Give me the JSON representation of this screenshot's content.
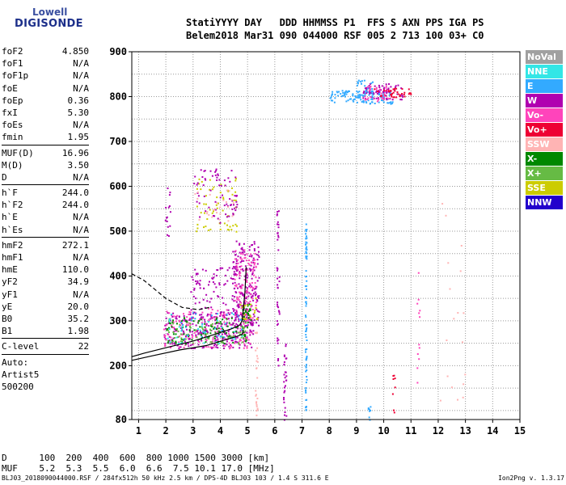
{
  "logo": {
    "line1": "Lowell",
    "line2": "DIGISONDE"
  },
  "header": {
    "labels": [
      "Stati",
      "YYYY",
      "DAY",
      "DDD",
      "HHMMSS",
      "P1",
      "FFS",
      "S",
      "AXN",
      "PPS",
      "IGA",
      "PS"
    ],
    "values": [
      "Belem",
      "2018",
      "Mar31",
      "090",
      "044000",
      "RSF",
      "005",
      "2",
      "713",
      "100",
      "03+",
      "C0"
    ]
  },
  "params": [
    [
      {
        "k": "foF2",
        "v": "4.850"
      },
      {
        "k": "foF1",
        "v": "N/A"
      },
      {
        "k": "foF1p",
        "v": "N/A"
      },
      {
        "k": "foE",
        "v": "N/A"
      },
      {
        "k": "foEp",
        "v": "0.36"
      },
      {
        "k": "fxI",
        "v": "5.30"
      },
      {
        "k": "foEs",
        "v": "N/A"
      },
      {
        "k": "fmin",
        "v": "1.95"
      }
    ],
    [
      {
        "k": "MUF(D)",
        "v": "16.96"
      },
      {
        "k": "M(D)",
        "v": "3.50"
      },
      {
        "k": "D",
        "v": "N/A"
      }
    ],
    [
      {
        "k": "h`F",
        "v": "244.0"
      },
      {
        "k": "h`F2",
        "v": "244.0"
      },
      {
        "k": "h`E",
        "v": "N/A"
      },
      {
        "k": "h`Es",
        "v": "N/A"
      }
    ],
    [
      {
        "k": "hmF2",
        "v": "272.1"
      },
      {
        "k": "hmF1",
        "v": "N/A"
      },
      {
        "k": "hmE",
        "v": "110.0"
      },
      {
        "k": "yF2",
        "v": "34.9"
      },
      {
        "k": "yF1",
        "v": "N/A"
      },
      {
        "k": "yE",
        "v": "20.0"
      },
      {
        "k": "B0",
        "v": "35.2"
      },
      {
        "k": "B1",
        "v": "1.98"
      }
    ],
    [
      {
        "k": "C-level",
        "v": "22"
      }
    ]
  ],
  "auto": [
    "Auto:",
    "Artist5",
    "500200"
  ],
  "legend": [
    {
      "label": "NoVal",
      "color": "#a0a0a0"
    },
    {
      "label": "NNE",
      "color": "#33e6e6"
    },
    {
      "label": "E",
      "color": "#33aaff"
    },
    {
      "label": "W",
      "color": "#b000b0"
    },
    {
      "label": "Vo-",
      "color": "#ff44bb"
    },
    {
      "label": "Vo+",
      "color": "#ee0033"
    },
    {
      "label": "SSW",
      "color": "#ffb4b4"
    },
    {
      "label": "X-",
      "color": "#008800"
    },
    {
      "label": "X+",
      "color": "#66bb44"
    },
    {
      "label": "SSE",
      "color": "#cccc00"
    },
    {
      "label": "NNW",
      "color": "#2200cc"
    }
  ],
  "dmuf": {
    "d_label": "D",
    "d_values": [
      "100",
      "200",
      "400",
      "600",
      "800",
      "1000",
      "1500",
      "3000"
    ],
    "d_unit": "[km]",
    "muf_label": "MUF",
    "muf_values": [
      "5.2",
      "5.3",
      "5.5",
      "6.0",
      "6.6",
      "7.5",
      "10.1",
      "17.0"
    ],
    "muf_unit": "[MHz]"
  },
  "footer": {
    "left": "BLJ03_2018090044000.RSF / 284fx512h 50 kHz 2.5 km / DPS-4D BLJ03 103 / 1.4 S 311.6 E",
    "right": "Ion2Png v. 1.3.17"
  },
  "chart_data": {
    "type": "scatter",
    "xlim": [
      0.75,
      15
    ],
    "ylim": [
      80,
      900
    ],
    "x_ticks": [
      1,
      2,
      3,
      4,
      5,
      6,
      7,
      8,
      9,
      10,
      11,
      12,
      13,
      14,
      15
    ],
    "y_ticks": [
      80,
      200,
      300,
      400,
      500,
      600,
      700,
      800,
      900
    ],
    "y_tick_labels": [
      "80",
      "200",
      "300",
      "400",
      "500",
      "600",
      "700",
      "800",
      "900"
    ],
    "grid": true,
    "legend_position": "right",
    "clusters": [
      {
        "series": "W",
        "x": [
          1.9,
          5.2
        ],
        "y": [
          240,
          320
        ],
        "n": 260
      },
      {
        "series": "Vo-",
        "x": [
          1.9,
          5.2
        ],
        "y": [
          240,
          330
        ],
        "n": 160
      },
      {
        "series": "X-",
        "x": [
          2.0,
          5.1
        ],
        "y": [
          250,
          310
        ],
        "n": 110
      },
      {
        "series": "X+",
        "x": [
          2.0,
          5.0
        ],
        "y": [
          250,
          300
        ],
        "n": 70
      },
      {
        "series": "NNE",
        "x": [
          2.0,
          5.0
        ],
        "y": [
          250,
          320
        ],
        "n": 40
      },
      {
        "series": "E",
        "x": [
          2.3,
          4.8
        ],
        "y": [
          260,
          320
        ],
        "n": 30
      },
      {
        "series": "W",
        "x": [
          4.4,
          5.4
        ],
        "y": [
          290,
          480
        ],
        "n": 180
      },
      {
        "series": "Vo-",
        "x": [
          4.5,
          5.3
        ],
        "y": [
          300,
          460
        ],
        "n": 110
      },
      {
        "series": "X-",
        "x": [
          4.8,
          5.1
        ],
        "y": [
          300,
          340
        ],
        "n": 30
      },
      {
        "series": "SSE",
        "x": [
          4.7,
          5.4
        ],
        "y": [
          300,
          360
        ],
        "n": 20
      },
      {
        "series": "W",
        "x": [
          2.9,
          5.0
        ],
        "y": [
          320,
          420
        ],
        "n": 100
      },
      {
        "series": "SSE",
        "x": [
          3.0,
          4.6
        ],
        "y": [
          500,
          620
        ],
        "n": 60
      },
      {
        "series": "W",
        "x": [
          3.0,
          4.6
        ],
        "y": [
          520,
          640
        ],
        "n": 70
      },
      {
        "series": "SSW",
        "x": [
          3.0,
          4.5
        ],
        "y": [
          520,
          600
        ],
        "n": 25
      },
      {
        "series": "W",
        "x": [
          1.95,
          2.15
        ],
        "y": [
          480,
          600
        ],
        "n": 15
      },
      {
        "series": "E",
        "x": [
          8.0,
          10.3
        ],
        "y": [
          785,
          815
        ],
        "n": 120
      },
      {
        "series": "W",
        "x": [
          9.2,
          10.7
        ],
        "y": [
          795,
          830
        ],
        "n": 70
      },
      {
        "series": "Vo+",
        "x": [
          9.6,
          11.0
        ],
        "y": [
          800,
          820
        ],
        "n": 40
      },
      {
        "series": "E",
        "x": [
          9.0,
          9.6
        ],
        "y": [
          800,
          840
        ],
        "n": 25
      },
      {
        "series": "Vo-",
        "x": [
          9.2,
          10.2
        ],
        "y": [
          790,
          825
        ],
        "n": 30
      },
      {
        "series": "W",
        "x": [
          6.05,
          6.15
        ],
        "y": [
          200,
          560
        ],
        "n": 40
      },
      {
        "series": "E",
        "x": [
          7.1,
          7.15
        ],
        "y": [
          90,
          520
        ],
        "n": 80
      },
      {
        "series": "SSW",
        "x": [
          5.25,
          5.35
        ],
        "y": [
          80,
          280
        ],
        "n": 25
      },
      {
        "series": "W",
        "x": [
          6.3,
          6.4
        ],
        "y": [
          80,
          250
        ],
        "n": 30
      },
      {
        "series": "Vo+",
        "x": [
          10.3,
          10.4
        ],
        "y": [
          80,
          180
        ],
        "n": 8
      },
      {
        "series": "Vo-",
        "x": [
          11.2,
          11.3
        ],
        "y": [
          150,
          420
        ],
        "n": 12
      },
      {
        "series": "SSW",
        "x": [
          12.0,
          13.0
        ],
        "y": [
          100,
          600
        ],
        "n": 18
      },
      {
        "series": "E",
        "x": [
          9.4,
          9.5
        ],
        "y": [
          80,
          110
        ],
        "n": 8
      }
    ],
    "traces": [
      {
        "name": "ionogram-trace",
        "style": "solid",
        "x": [
          0.75,
          1.2,
          2.0,
          3.0,
          3.8,
          4.4,
          4.7,
          4.8,
          4.85,
          4.9,
          4.95
        ],
        "y": [
          220,
          228,
          240,
          255,
          270,
          282,
          290,
          300,
          330,
          360,
          420
        ]
      },
      {
        "name": "profile-trace",
        "style": "solid",
        "x": [
          0.75,
          1.5,
          2.5,
          3.5,
          4.2,
          4.6,
          4.8,
          4.85
        ],
        "y": [
          212,
          222,
          235,
          245,
          258,
          265,
          270,
          280
        ]
      },
      {
        "name": "model-trace",
        "style": "dashed",
        "x": [
          0.75,
          1.2,
          2.0,
          2.6,
          3.2,
          3.6
        ],
        "y": [
          405,
          390,
          350,
          330,
          325,
          330
        ]
      }
    ]
  }
}
